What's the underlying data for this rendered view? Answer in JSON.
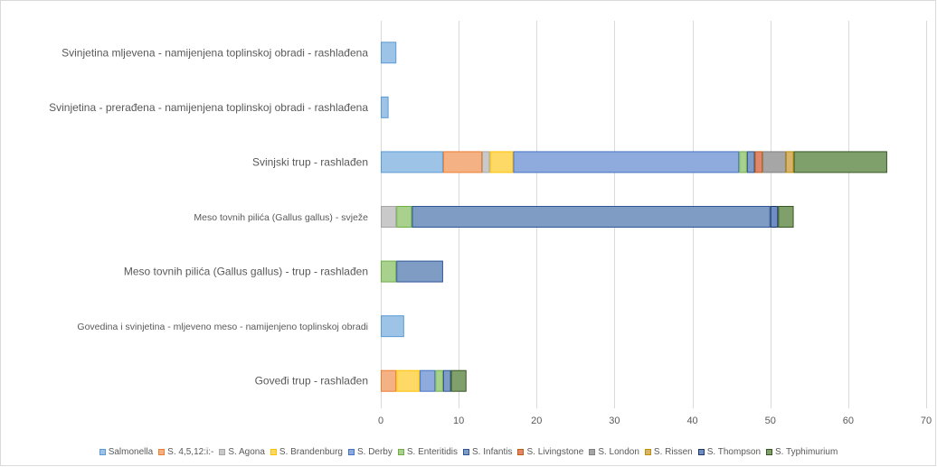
{
  "chart_data": {
    "type": "bar",
    "orientation": "horizontal",
    "stacked": true,
    "categories": [
      "Svinjetina mljevena - namijenjena toplinskoj obradi - rashlađena",
      "Svinjetina - prerađena - namijenjena toplinskoj obradi - rashlađena",
      "Svinjski trup - rashlađen",
      "Meso tovnih pilića (Gallus gallus) - svježe",
      "Meso tovnih pilića (Gallus gallus) - trup - rashlađen",
      "Govedina i svinjetina - mljeveno meso - namijenjeno toplinskoj obradi",
      "Goveđi trup - rashlađen"
    ],
    "series": [
      {
        "name": "Salmonella",
        "color": "#9dc3e6",
        "border": "#5b9bd5",
        "values": [
          2,
          1,
          8,
          0,
          0,
          3,
          0
        ]
      },
      {
        "name": "S. 4,5,12:i:-",
        "color": "#f4b183",
        "border": "#ed7d31",
        "values": [
          0,
          0,
          5,
          0,
          0,
          0,
          2
        ]
      },
      {
        "name": "S. Agona",
        "color": "#c9c9c9",
        "border": "#a5a5a5",
        "values": [
          0,
          0,
          1,
          2,
          0,
          0,
          0
        ]
      },
      {
        "name": "S. Brandenburg",
        "color": "#ffd966",
        "border": "#ffc000",
        "values": [
          0,
          0,
          3,
          0,
          0,
          0,
          3
        ]
      },
      {
        "name": "S. Derby",
        "color": "#8faadc",
        "border": "#4472c4",
        "values": [
          0,
          0,
          29,
          0,
          0,
          0,
          2
        ]
      },
      {
        "name": "S. Enteritidis",
        "color": "#a9d18e",
        "border": "#70ad47",
        "values": [
          0,
          0,
          1,
          2,
          2,
          0,
          1
        ]
      },
      {
        "name": "S. Infantis",
        "color": "#7f9cc4",
        "border": "#2e5597",
        "values": [
          0,
          0,
          1,
          46,
          6,
          0,
          1
        ]
      },
      {
        "name": "S. Livingstone",
        "color": "#e0876a",
        "border": "#c55a11",
        "values": [
          0,
          0,
          1,
          0,
          0,
          0,
          0
        ]
      },
      {
        "name": "S. London",
        "color": "#a6a6a6",
        "border": "#7f7f7f",
        "values": [
          0,
          0,
          3,
          0,
          0,
          0,
          0
        ]
      },
      {
        "name": "S. Rissen",
        "color": "#d9b36b",
        "border": "#bf9000",
        "values": [
          0,
          0,
          1,
          0,
          0,
          0,
          0
        ]
      },
      {
        "name": "S. Thompson",
        "color": "#6f8fc4",
        "border": "#203864",
        "values": [
          0,
          0,
          0,
          1,
          0,
          0,
          0
        ]
      },
      {
        "name": "S. Typhimurium",
        "color": "#7fa06a",
        "border": "#375623",
        "values": [
          0,
          0,
          12,
          2,
          0,
          0,
          2
        ]
      }
    ],
    "xlim": [
      0,
      70
    ],
    "xticks": [
      0,
      10,
      20,
      30,
      40,
      50,
      60,
      70
    ],
    "grid": true,
    "legend_position": "bottom",
    "title": "",
    "xlabel": "",
    "ylabel": ""
  }
}
